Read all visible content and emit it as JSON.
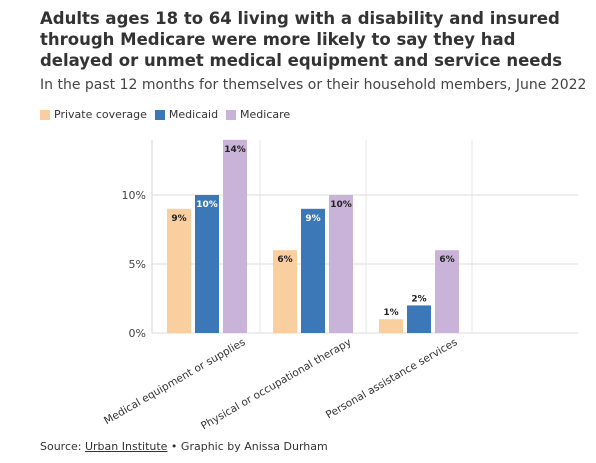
{
  "title": "Adults ages 18 to 64 living with a disability and insured through Medicare were more likely to say they had delayed or unmet medical equipment and service needs",
  "subtitle": "In the past 12 months for themselves or their household members, June 2022",
  "source": {
    "prefix": "Source: ",
    "link": "Urban Institute",
    "suffix": " • Graphic by Anissa Durham"
  },
  "colors": {
    "Private coverage": "#f9cfa0",
    "Medicaid": "#3c78b8",
    "Medicare": "#c9b3d8"
  },
  "chart_data": {
    "type": "bar",
    "categories": [
      "Medical equipment or supplies",
      "Physical or occupational therapy",
      "Personal assistance services"
    ],
    "series": [
      {
        "name": "Private coverage",
        "values": [
          9,
          6,
          1
        ]
      },
      {
        "name": "Medicaid",
        "values": [
          10,
          9,
          2
        ]
      },
      {
        "name": "Medicare",
        "values": [
          14,
          10,
          6
        ]
      }
    ],
    "value_labels": [
      [
        "9%",
        "6%",
        "1%"
      ],
      [
        "10%",
        "9%",
        "2%"
      ],
      [
        "14%",
        "10%",
        "6%"
      ]
    ],
    "yticks": [
      {
        "value": 0,
        "label": "0%"
      },
      {
        "value": 5,
        "label": "5%"
      },
      {
        "value": 10,
        "label": "10%"
      }
    ],
    "ylim": [
      0,
      14
    ],
    "xlabel": "",
    "ylabel": "",
    "grid": true,
    "legend": "top-left"
  }
}
